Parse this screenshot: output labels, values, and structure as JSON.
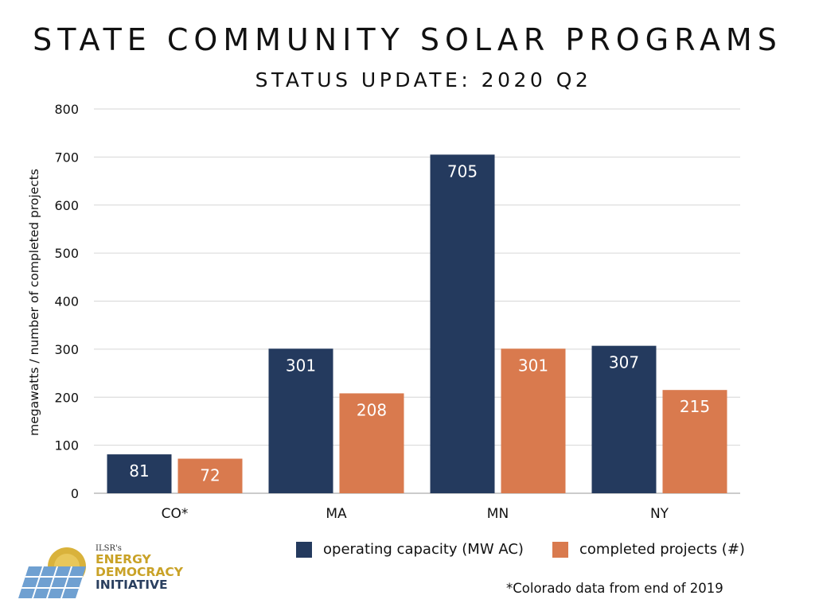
{
  "header": {
    "title": "STATE COMMUNITY SOLAR PROGRAMS",
    "subtitle": "STATUS UPDATE: 2020 Q2"
  },
  "chart_data": {
    "type": "bar",
    "categories": [
      "CO*",
      "MA",
      "MN",
      "NY"
    ],
    "series": [
      {
        "name": "operating capacity (MW AC)",
        "values": [
          81,
          301,
          705,
          307
        ],
        "color": "#243a5e"
      },
      {
        "name": "completed projects (#)",
        "values": [
          72,
          208,
          301,
          215
        ],
        "color": "#d97a4e"
      }
    ],
    "ylabel": "megawatts / number of completed projects",
    "xlabel": "",
    "ylim": [
      0,
      800
    ],
    "yticks": [
      0,
      100,
      200,
      300,
      400,
      500,
      600,
      700,
      800
    ],
    "grid": true,
    "legend_position": "bottom-right",
    "data_label_color": "#ffffff"
  },
  "footnote": "*Colorado data from end of 2019",
  "logo": {
    "org": "ILSR's",
    "line1": "ENERGY",
    "line2": "DEMOCRACY",
    "line3": "INITIATIVE"
  }
}
